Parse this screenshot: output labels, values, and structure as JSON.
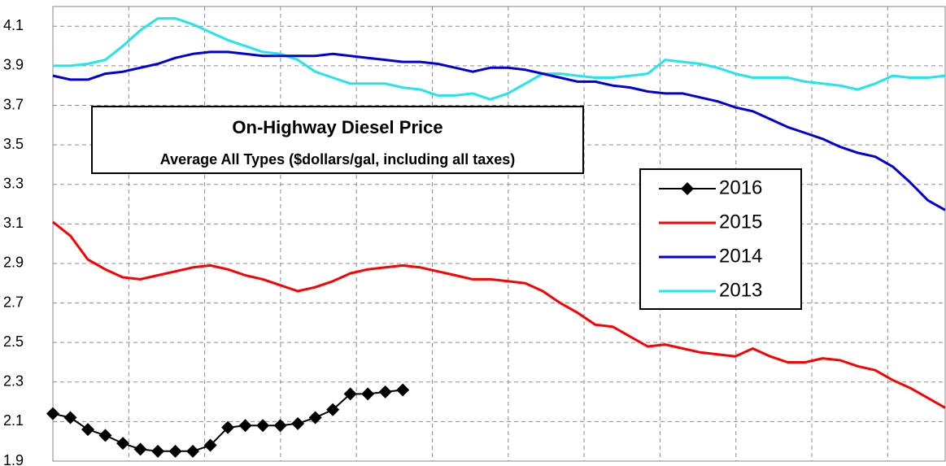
{
  "chart_data": {
    "type": "line",
    "title": "On-Highway Diesel Price",
    "subtitle": "Average All Types ($dollars/gal, including all taxes)",
    "categories": [
      null,
      null,
      null,
      null,
      null,
      null,
      null,
      null,
      null,
      null,
      null,
      null,
      null,
      null,
      null,
      null,
      null,
      null,
      null,
      null,
      null,
      null,
      null,
      null,
      null,
      null,
      null,
      null,
      null,
      null,
      null,
      null,
      null,
      null,
      null,
      null,
      null,
      null,
      null,
      null,
      null,
      null,
      null,
      null,
      null,
      null,
      null,
      null,
      null,
      null,
      null,
      null
    ],
    "series": [
      {
        "name": "2016",
        "color": "#000000",
        "marker": "diamond",
        "values": [
          2.14,
          2.12,
          2.06,
          2.03,
          1.99,
          1.96,
          1.95,
          1.95,
          1.95,
          1.98,
          2.07,
          2.08,
          2.08,
          2.08,
          2.09,
          2.12,
          2.16,
          2.24,
          2.24,
          2.25,
          2.26,
          null,
          null,
          null,
          null,
          null,
          null,
          null,
          null,
          null,
          null,
          null,
          null,
          null,
          null,
          null,
          null,
          null,
          null,
          null,
          null,
          null,
          null,
          null,
          null,
          null,
          null,
          null,
          null,
          null,
          null,
          null
        ]
      },
      {
        "name": "2015",
        "color": "#ff0000",
        "values": [
          3.11,
          3.04,
          2.92,
          2.87,
          2.83,
          2.82,
          2.84,
          2.86,
          2.88,
          2.89,
          2.87,
          2.84,
          2.82,
          2.79,
          2.76,
          2.78,
          2.81,
          2.85,
          2.87,
          2.88,
          2.89,
          2.88,
          2.86,
          2.84,
          2.82,
          2.82,
          2.81,
          2.8,
          2.76,
          2.7,
          2.65,
          2.59,
          2.58,
          2.53,
          2.48,
          2.49,
          2.47,
          2.45,
          2.44,
          2.43,
          2.47,
          2.43,
          2.4,
          2.4,
          2.42,
          2.41,
          2.38,
          2.36,
          2.31,
          2.27,
          2.22,
          2.17
        ]
      },
      {
        "name": "2014",
        "color": "#0000dd",
        "values": [
          3.85,
          3.83,
          3.83,
          3.86,
          3.87,
          3.89,
          3.91,
          3.94,
          3.96,
          3.97,
          3.97,
          3.96,
          3.95,
          3.95,
          3.95,
          3.95,
          3.96,
          3.95,
          3.94,
          3.93,
          3.92,
          3.92,
          3.91,
          3.89,
          3.87,
          3.89,
          3.89,
          3.88,
          3.86,
          3.84,
          3.82,
          3.82,
          3.8,
          3.79,
          3.77,
          3.76,
          3.76,
          3.74,
          3.72,
          3.69,
          3.67,
          3.63,
          3.59,
          3.56,
          3.53,
          3.49,
          3.46,
          3.44,
          3.39,
          3.31,
          3.22,
          3.17
        ]
      },
      {
        "name": "2013",
        "color": "#22e5ee",
        "values": [
          3.9,
          3.9,
          3.91,
          3.93,
          4.0,
          4.08,
          4.14,
          4.14,
          4.11,
          4.07,
          4.03,
          4.0,
          3.97,
          3.96,
          3.93,
          3.87,
          3.84,
          3.81,
          3.81,
          3.81,
          3.79,
          3.78,
          3.75,
          3.75,
          3.76,
          3.73,
          3.76,
          3.81,
          3.86,
          3.86,
          3.85,
          3.84,
          3.84,
          3.85,
          3.86,
          3.93,
          3.92,
          3.91,
          3.89,
          3.86,
          3.84,
          3.84,
          3.84,
          3.82,
          3.81,
          3.8,
          3.78,
          3.81,
          3.85,
          3.84,
          3.84,
          3.85
        ]
      }
    ],
    "ylim": [
      1.9,
      4.2
    ],
    "yticks": [
      1.9,
      2.1,
      2.3,
      2.5,
      2.7,
      2.9,
      3.1,
      3.3,
      3.5,
      3.7,
      3.9,
      4.1
    ],
    "grid": true
  }
}
